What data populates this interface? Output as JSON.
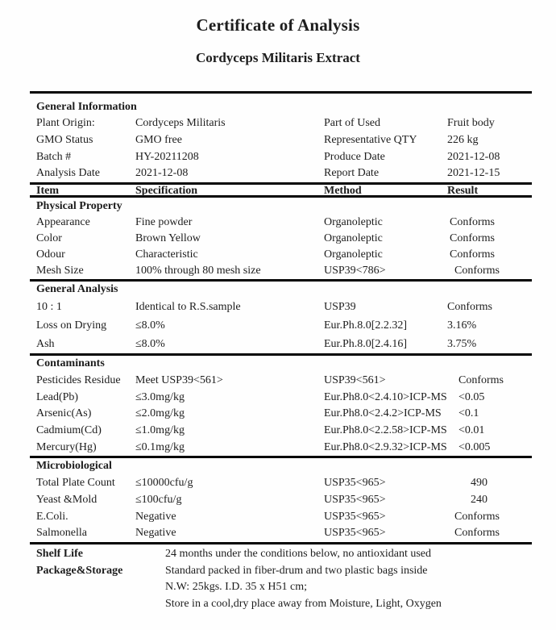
{
  "title": "Certificate of Analysis",
  "subtitle": "Cordyceps Militaris Extract",
  "general_information": {
    "heading": "General Information",
    "rows": [
      {
        "label": "Plant Origin:",
        "value": "Cordyceps Militaris",
        "label2": "Part of Used",
        "value2": "Fruit body"
      },
      {
        "label": "GMO Status",
        "value": "GMO free",
        "label2": "Representative QTY",
        "value2": "226 kg"
      },
      {
        "label": "Batch #",
        "value": "HY-20211208",
        "label2": "Produce Date",
        "value2": "2021-12-08"
      },
      {
        "label": "Analysis Date",
        "value": "2021-12-08",
        "label2": "Report Date",
        "value2": "2021-12-15"
      }
    ]
  },
  "table": {
    "headers": [
      "Item",
      "Specification",
      "Method",
      "Result"
    ],
    "sections": [
      {
        "heading": "Physical Property",
        "rows": [
          [
            "Appearance",
            "Fine powder",
            "Organoleptic",
            "Conforms"
          ],
          [
            "Color",
            "Brown Yellow",
            "Organoleptic",
            "Conforms"
          ],
          [
            "Odour",
            "Characteristic",
            "Organoleptic",
            "Conforms"
          ],
          [
            "Mesh Size",
            "100% through 80 mesh size",
            "USP39<786>",
            "Conforms"
          ]
        ]
      },
      {
        "heading": "General Analysis",
        "rows": [
          [
            "10 : 1",
            "Identical to R.S.sample",
            "USP39",
            "Conforms"
          ],
          [
            "Loss on Drying",
            "≤8.0%",
            "Eur.Ph.8.0[2.2.32]",
            "3.16%"
          ],
          [
            "Ash",
            "≤8.0%",
            "Eur.Ph.8.0[2.4.16]",
            "3.75%"
          ]
        ]
      },
      {
        "heading": "Contaminants",
        "rows": [
          [
            "Pesticides Residue",
            "Meet USP39<561>",
            "USP39<561>",
            "Conforms"
          ],
          [
            "Lead(Pb)",
            "≤3.0mg/kg",
            "Eur.Ph8.0<2.4.10>ICP-MS",
            "<0.05"
          ],
          [
            "Arsenic(As)",
            "≤2.0mg/kg",
            "Eur.Ph8.0<2.4.2>ICP-MS",
            "<0.1"
          ],
          [
            "Cadmium(Cd)",
            "≤1.0mg/kg",
            "Eur.Ph8.0<2.2.58>ICP-MS",
            "<0.01"
          ],
          [
            "Mercury(Hg)",
            "≤0.1mg/kg",
            "Eur.Ph8.0<2.9.32>ICP-MS",
            "<0.005"
          ]
        ]
      },
      {
        "heading": "Microbiological",
        "rows": [
          [
            "Total Plate Count",
            "≤10000cfu/g",
            "USP35<965>",
            "490"
          ],
          [
            "Yeast &Mold",
            "≤100cfu/g",
            "USP35<965>",
            "240"
          ],
          [
            "E.Coli.",
            "Negative",
            "USP35<965>",
            "Conforms"
          ],
          [
            "Salmonella",
            "Negative",
            "USP35<965>",
            "Conforms"
          ]
        ]
      }
    ]
  },
  "footer": {
    "rows": [
      {
        "label": "Shelf Life",
        "text": "24 months under the conditions below, no antioxidant used"
      },
      {
        "label": "Package&Storage",
        "text": "Standard packed in fiber-drum and two plastic bags inside"
      },
      {
        "label": "",
        "text": "N.W: 25kgs. I.D. 35 x H51 cm;"
      },
      {
        "label": "",
        "text": "Store in a cool,dry place away from Moisture, Light, Oxygen"
      }
    ]
  },
  "colors": {
    "text": "#1d1d1d",
    "rule": "#050505",
    "background": "#fefefe"
  }
}
